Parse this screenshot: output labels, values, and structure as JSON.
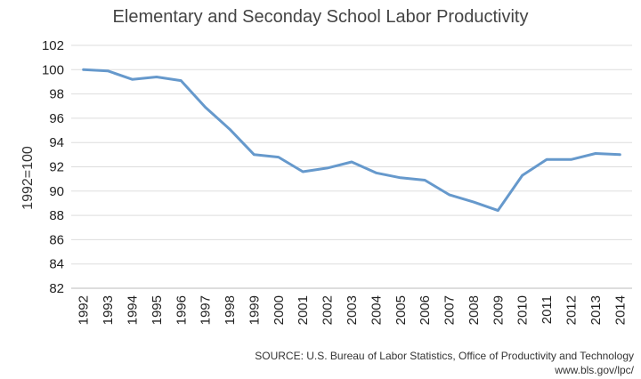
{
  "chart_data": {
    "type": "line",
    "title": "Elementary and Seconday School Labor Productivity",
    "ylabel": "1992=100",
    "xlabel": "",
    "ylim": [
      82,
      102
    ],
    "yticks": [
      82,
      84,
      86,
      88,
      90,
      92,
      94,
      96,
      98,
      100,
      102
    ],
    "grid": true,
    "legend": "none",
    "line_color": "#6699cc",
    "categories": [
      "1992",
      "1993",
      "1994",
      "1995",
      "1996",
      "1997",
      "1998",
      "1999",
      "2000",
      "2001",
      "2002",
      "2003",
      "2004",
      "2005",
      "2006",
      "2007",
      "2008",
      "2009",
      "2010",
      "2011",
      "2012",
      "2013",
      "2014"
    ],
    "series": [
      {
        "values": [
          100.0,
          99.9,
          99.2,
          99.4,
          99.1,
          96.9,
          95.1,
          93.0,
          92.8,
          91.6,
          91.9,
          92.4,
          91.5,
          91.1,
          90.9,
          89.7,
          89.1,
          88.4,
          91.3,
          92.6,
          92.6,
          93.1,
          93.0
        ]
      }
    ],
    "source_line1": "SOURCE: U.S. Bureau of Labor Statistics, Office of Productivity and Technology",
    "source_line2": "www.bls.gov/lpc/"
  }
}
